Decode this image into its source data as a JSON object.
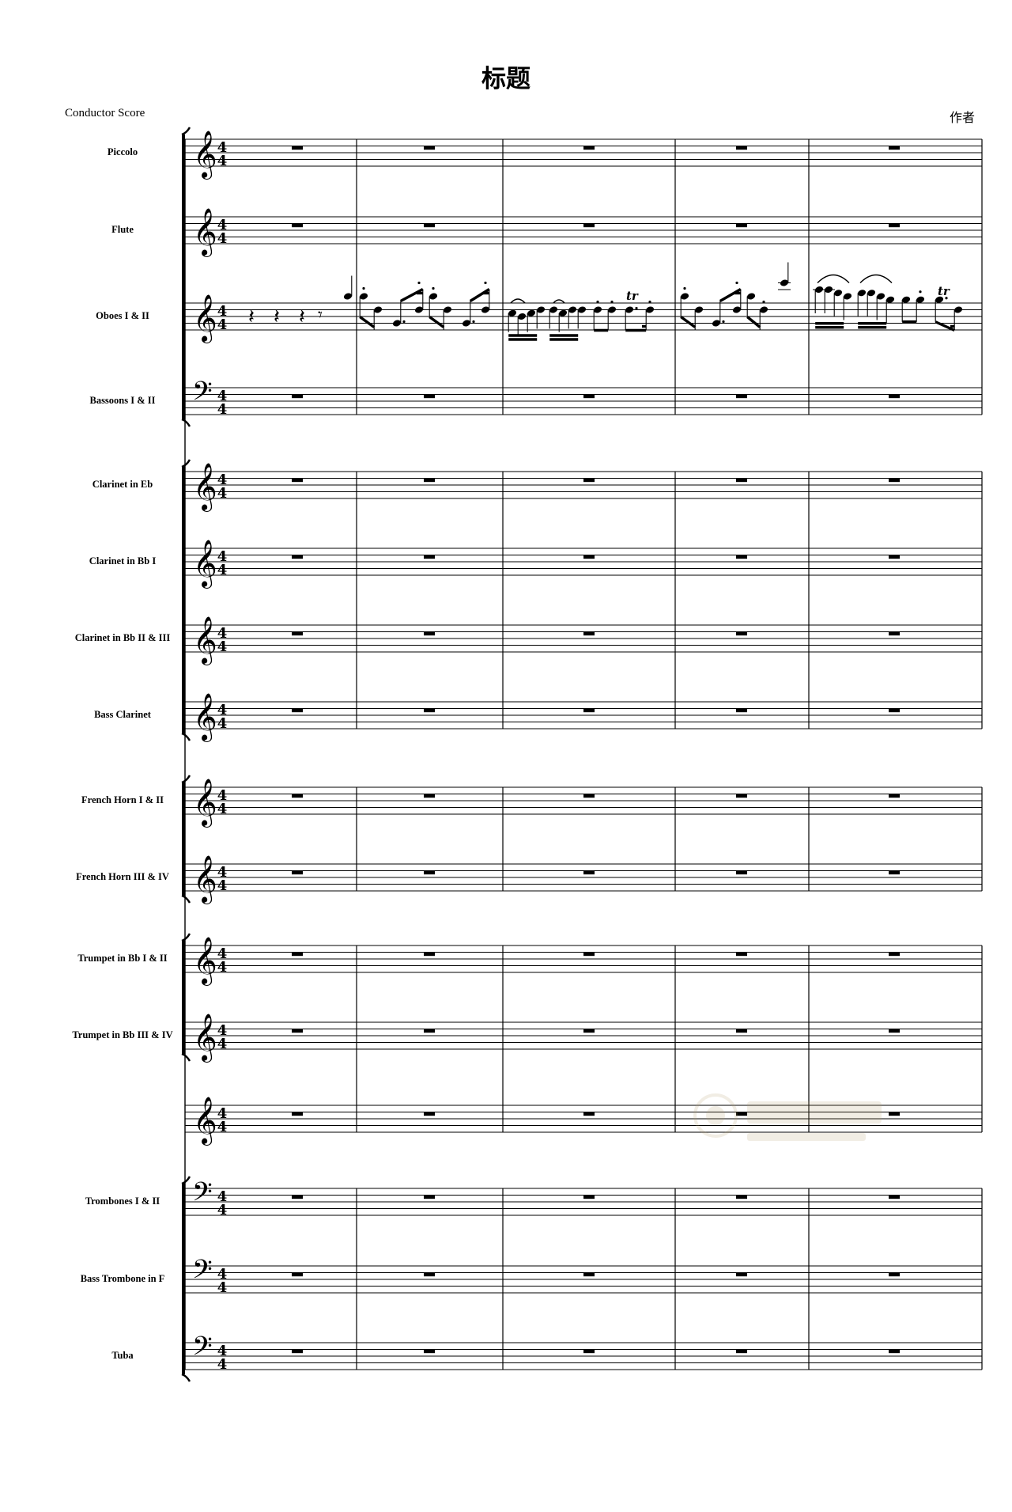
{
  "header": {
    "title": "标题",
    "subtitle": "Conductor Score",
    "composer": "作者"
  },
  "time_signature": {
    "upper": "4",
    "lower": "4"
  },
  "measure_count": 5,
  "staves": [
    {
      "label": "Piccolo",
      "clef": "treble"
    },
    {
      "label": "Flute",
      "clef": "treble"
    },
    {
      "label": "Oboes I & II",
      "clef": "treble"
    },
    {
      "label": "Bassoons I & II",
      "clef": "bass"
    },
    {
      "label": "Clarinet in Eb",
      "clef": "treble"
    },
    {
      "label": "Clarinet in Bb I",
      "clef": "treble"
    },
    {
      "label": "Clarinet in Bb II & III",
      "clef": "treble"
    },
    {
      "label": "Bass Clarinet",
      "clef": "treble"
    },
    {
      "label": "French Horn I & II",
      "clef": "treble"
    },
    {
      "label": "French Horn III & IV",
      "clef": "treble"
    },
    {
      "label": "Trumpet in Bb I & II",
      "clef": "treble"
    },
    {
      "label": "Trumpet in Bb III & IV",
      "clef": "treble"
    },
    {
      "label": "",
      "clef": "treble"
    },
    {
      "label": "Trombones I & II",
      "clef": "bass"
    },
    {
      "label": "Bass Trombone in F",
      "clef": "bass"
    },
    {
      "label": "Tuba",
      "clef": "bass"
    }
  ],
  "ornament_label": "tr",
  "colors": {
    "ink": "#000000",
    "watermark": "#b8a070"
  }
}
